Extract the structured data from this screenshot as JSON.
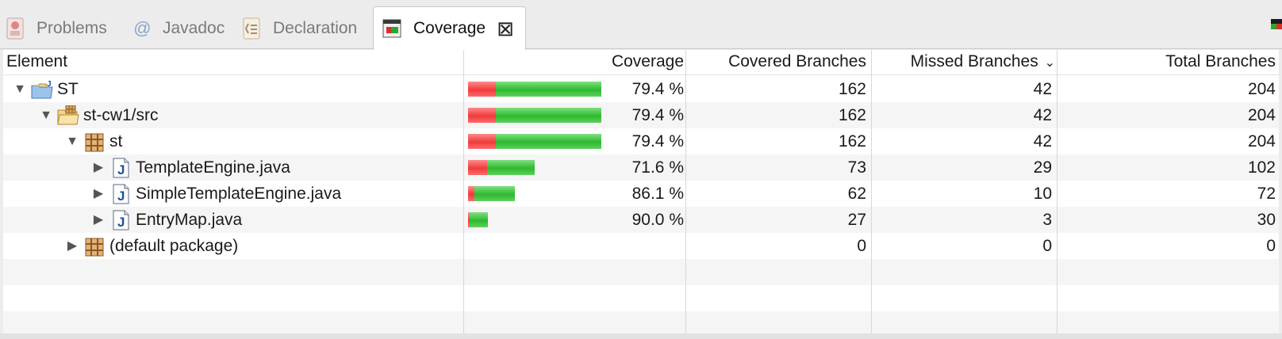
{
  "tabs": [
    {
      "label": "Problems",
      "icon": "problems-icon",
      "active": false
    },
    {
      "label": "Javadoc",
      "icon": "javadoc-at-icon",
      "active": false
    },
    {
      "label": "Declaration",
      "icon": "declaration-icon",
      "active": false
    },
    {
      "label": "Coverage",
      "icon": "coverage-icon",
      "active": true
    }
  ],
  "javadoc_symbol": "@",
  "close_symbol": "⊠",
  "colors": {
    "covered": "#2fb82f",
    "missed": "#ee3b3b",
    "accent_java": "#1c4fa0"
  },
  "table": {
    "columns": {
      "element": "Element",
      "coverage": "Coverage",
      "covered": "Covered Branches",
      "missed": "Missed Branches",
      "total": "Total Branches"
    },
    "sort_indicator": "⌄",
    "rows": [
      {
        "name": "ST",
        "depth": 0,
        "expanded": true,
        "has_children": true,
        "icon": "java-project-icon",
        "coverage": "79.4 %",
        "covered": "162",
        "missed": "42",
        "total": "204",
        "ratio": 0.794,
        "total_n": 204
      },
      {
        "name": "st-cw1/src",
        "depth": 1,
        "expanded": true,
        "has_children": true,
        "icon": "source-folder-icon",
        "coverage": "79.4 %",
        "covered": "162",
        "missed": "42",
        "total": "204",
        "ratio": 0.794,
        "total_n": 204
      },
      {
        "name": "st",
        "depth": 2,
        "expanded": true,
        "has_children": true,
        "icon": "package-icon",
        "coverage": "79.4 %",
        "covered": "162",
        "missed": "42",
        "total": "204",
        "ratio": 0.794,
        "total_n": 204
      },
      {
        "name": "TemplateEngine.java",
        "depth": 3,
        "expanded": false,
        "has_children": true,
        "icon": "java-file-icon",
        "coverage": "71.6 %",
        "covered": "73",
        "missed": "29",
        "total": "102",
        "ratio": 0.716,
        "total_n": 102
      },
      {
        "name": "SimpleTemplateEngine.java",
        "depth": 3,
        "expanded": false,
        "has_children": true,
        "icon": "java-file-icon",
        "coverage": "86.1 %",
        "covered": "62",
        "missed": "10",
        "total": "72",
        "ratio": 0.861,
        "total_n": 72
      },
      {
        "name": "EntryMap.java",
        "depth": 3,
        "expanded": false,
        "has_children": true,
        "icon": "java-file-icon",
        "coverage": "90.0 %",
        "covered": "27",
        "missed": "3",
        "total": "30",
        "ratio": 0.9,
        "total_n": 30
      },
      {
        "name": "(default package)",
        "depth": 2,
        "expanded": false,
        "has_children": true,
        "icon": "package-icon",
        "coverage": "",
        "covered": "0",
        "missed": "0",
        "total": "0",
        "ratio": 0,
        "total_n": 0
      }
    ]
  }
}
